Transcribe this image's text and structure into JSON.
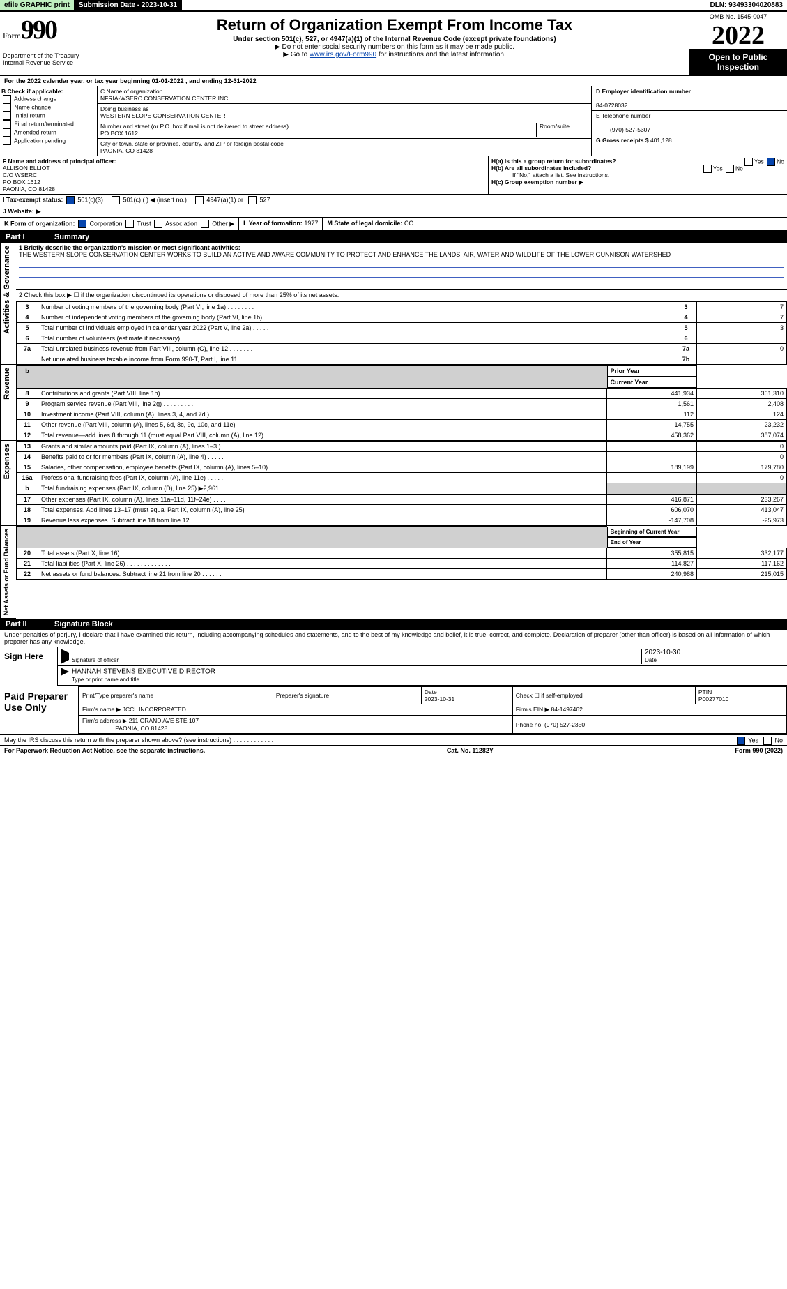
{
  "header": {
    "efile": "efile GRAPHIC print",
    "submission": "Submission Date - 2023-10-31",
    "dln": "DLN: 93493304020883"
  },
  "form": {
    "prefix": "Form",
    "number": "990",
    "title": "Return of Organization Exempt From Income Tax",
    "sub1": "Under section 501(c), 527, or 4947(a)(1) of the Internal Revenue Code (except private foundations)",
    "sub2": "Do not enter social security numbers on this form as it may be made public.",
    "sub3": "Go to www.irs.gov/Form990 for instructions and the latest information.",
    "irslink": "www.irs.gov/Form990",
    "dept": "Department of the Treasury Internal Revenue Service",
    "omb": "OMB No. 1545-0047",
    "year": "2022",
    "pub": "Open to Public Inspection"
  },
  "period": "For the 2022 calendar year, or tax year beginning 01-01-2022   , and ending 12-31-2022",
  "checkB": {
    "title": "B Check if applicable:",
    "items": [
      "Address change",
      "Name change",
      "Initial return",
      "Final return/terminated",
      "Amended return",
      "Application pending"
    ]
  },
  "blockC": {
    "nameLbl": "C Name of organization",
    "name": "NFRIA-WSERC CONSERVATION CENTER INC",
    "dbaLbl": "Doing business as",
    "dba": "WESTERN SLOPE CONSERVATION CENTER",
    "streetLbl": "Number and street (or P.O. box if mail is not delivered to street address)",
    "roomLbl": "Room/suite",
    "street": "PO BOX 1612",
    "cityLbl": "City or town, state or province, country, and ZIP or foreign postal code",
    "city": "PAONIA, CO  81428"
  },
  "blockD": {
    "lbl": "D Employer identification number",
    "val": "84-0728032"
  },
  "blockE": {
    "lbl": "E Telephone number",
    "val": "(970) 527-5307"
  },
  "blockG": {
    "lbl": "G Gross receipts $",
    "val": "401,128"
  },
  "blockF": {
    "lbl": "F  Name and address of principal officer:",
    "lines": [
      "ALLISON ELLIOT",
      "C/O WSERC",
      "PO BOX 1612",
      "PAONIA, CO  81428"
    ]
  },
  "blockH": {
    "a": "H(a)  Is this a group return for subordinates?",
    "aYes": "Yes",
    "aNo": "No",
    "b": "H(b)  Are all subordinates included?",
    "bYes": "Yes",
    "bNo": "No",
    "bNote": "If \"No,\" attach a list. See instructions.",
    "c": "H(c)  Group exemption number ▶"
  },
  "taxI": {
    "lbl": "I   Tax-exempt status:",
    "o1": "501(c)(3)",
    "o2": "501(c) (  ) ◀ (insert no.)",
    "o3": "4947(a)(1) or",
    "o4": "527"
  },
  "taxJ": {
    "lbl": "J   Website: ▶"
  },
  "taxK": {
    "lbl": "K Form of organization:",
    "o1": "Corporation",
    "o2": "Trust",
    "o3": "Association",
    "o4": "Other ▶"
  },
  "taxL": {
    "lbl": "L Year of formation:",
    "val": "1977"
  },
  "taxM": {
    "lbl": "M State of legal domicile:",
    "val": "CO"
  },
  "part1": {
    "bar": "Part I",
    "title": "Summary"
  },
  "sideLabels": {
    "ag": "Activities & Governance",
    "rev": "Revenue",
    "exp": "Expenses",
    "na": "Net Assets or Fund Balances"
  },
  "q1": {
    "lbl": "1  Briefly describe the organization's mission or most significant activities:",
    "text": "THE WESTERN SLOPE CONSERVATION CENTER WORKS TO BUILD AN ACTIVE AND AWARE COMMUNITY TO PROTECT AND ENHANCE THE LANDS, AIR, WATER AND WILDLIFE OF THE LOWER GUNNISON WATERSHED"
  },
  "q2": "2   Check this box ▶ ☐  if the organization discontinued its operations or disposed of more than 25% of its net assets.",
  "govRows": [
    {
      "n": "3",
      "t": "Number of voting members of the governing body (Part VI, line 1a)  .    .    .    .    .    .    .    .",
      "b": "3",
      "v": "7"
    },
    {
      "n": "4",
      "t": "Number of independent voting members of the governing body (Part VI, line 1b)   .    .    .    .",
      "b": "4",
      "v": "7"
    },
    {
      "n": "5",
      "t": "Total number of individuals employed in calendar year 2022 (Part V, line 2a)   .    .    .    .    .",
      "b": "5",
      "v": "3"
    },
    {
      "n": "6",
      "t": "Total number of volunteers (estimate if necessary)    .    .    .    .    .    .    .    .    .    .    .",
      "b": "6",
      "v": ""
    },
    {
      "n": "7a",
      "t": "Total unrelated business revenue from Part VIII, column (C), line 12   .    .    .    .    .    .    .",
      "b": "7a",
      "v": "0"
    },
    {
      "n": "",
      "t": "Net unrelated business taxable income from Form 990-T, Part I, line 11   .    .    .    .    .    .    .",
      "b": "7b",
      "v": ""
    }
  ],
  "hdrPrior": "Prior Year",
  "hdrCurr": "Current Year",
  "revRows": [
    {
      "n": "8",
      "t": "Contributions and grants (Part VIII, line 1h)   .    .    .    .    .    .    .    .    .",
      "p": "441,934",
      "c": "361,310"
    },
    {
      "n": "9",
      "t": "Program service revenue (Part VIII, line 2g)   .    .    .    .    .    .    .    .    .",
      "p": "1,561",
      "c": "2,408"
    },
    {
      "n": "10",
      "t": "Investment income (Part VIII, column (A), lines 3, 4, and 7d )   .    .    .    .",
      "p": "112",
      "c": "124"
    },
    {
      "n": "11",
      "t": "Other revenue (Part VIII, column (A), lines 5, 6d, 8c, 9c, 10c, and 11e)",
      "p": "14,755",
      "c": "23,232"
    },
    {
      "n": "12",
      "t": "Total revenue—add lines 8 through 11 (must equal Part VIII, column (A), line 12)",
      "p": "458,362",
      "c": "387,074"
    }
  ],
  "expRows": [
    {
      "n": "13",
      "t": "Grants and similar amounts paid (Part IX, column (A), lines 1–3 )   .    .    .",
      "p": "",
      "c": "0"
    },
    {
      "n": "14",
      "t": "Benefits paid to or for members (Part IX, column (A), line 4)   .    .    .    .    .",
      "p": "",
      "c": "0"
    },
    {
      "n": "15",
      "t": "Salaries, other compensation, employee benefits (Part IX, column (A), lines 5–10)",
      "p": "189,199",
      "c": "179,780"
    },
    {
      "n": "16a",
      "t": "Professional fundraising fees (Part IX, column (A), line 11e)   .    .    .    .    .",
      "p": "",
      "c": "0"
    },
    {
      "n": "b",
      "t": "Total fundraising expenses (Part IX, column (D), line 25) ▶2,961",
      "p": "grey",
      "c": "grey"
    },
    {
      "n": "17",
      "t": "Other expenses (Part IX, column (A), lines 11a–11d, 11f–24e)   .    .    .    .",
      "p": "416,871",
      "c": "233,267"
    },
    {
      "n": "18",
      "t": "Total expenses. Add lines 13–17 (must equal Part IX, column (A), line 25)",
      "p": "606,070",
      "c": "413,047"
    },
    {
      "n": "19",
      "t": "Revenue less expenses. Subtract line 18 from line 12  .    .    .    .    .    .    .",
      "p": "-147,708",
      "c": "-25,973"
    }
  ],
  "hdrBeg": "Beginning of Current Year",
  "hdrEnd": "End of Year",
  "naRows": [
    {
      "n": "20",
      "t": "Total assets (Part X, line 16)  .    .    .    .    .    .    .    .    .    .    .    .    .    .",
      "p": "355,815",
      "c": "332,177"
    },
    {
      "n": "21",
      "t": "Total liabilities (Part X, line 26)  .    .    .    .    .    .    .    .    .    .    .    .    .",
      "p": "114,827",
      "c": "117,162"
    },
    {
      "n": "22",
      "t": "Net assets or fund balances. Subtract line 21 from line 20   .    .    .    .    .    .",
      "p": "240,988",
      "c": "215,015"
    }
  ],
  "part2": {
    "bar": "Part II",
    "title": "Signature Block"
  },
  "perjury": "Under penalties of perjury, I declare that I have examined this return, including accompanying schedules and statements, and to the best of my knowledge and belief, it is true, correct, and complete. Declaration of preparer (other than officer) is based on all information of which preparer has any knowledge.",
  "sign": {
    "here": "Sign Here",
    "sigOf": "Signature of officer",
    "date": "2023-10-30",
    "dateLbl": "Date",
    "typed": "HANNAH STEVENS  EXECUTIVE DIRECTOR",
    "typedLbl": "Type or print name and title"
  },
  "paid": {
    "lbl": "Paid Preparer Use Only",
    "h1": "Print/Type preparer's name",
    "h2": "Preparer's signature",
    "h3": "Date",
    "h3v": "2023-10-31",
    "h4": "Check ☐ if self-employed",
    "h5": "PTIN",
    "h5v": "P00277010",
    "firmLbl": "Firm's name   ▶",
    "firm": "JCCL INCORPORATED",
    "einLbl": "Firm's EIN ▶",
    "ein": "84-1497462",
    "addrLbl": "Firm's address ▶",
    "addr1": "211 GRAND AVE STE 107",
    "addr2": "PAONIA, CO  81428",
    "phoneLbl": "Phone no.",
    "phone": "(970) 527-2350"
  },
  "discuss": "May the IRS discuss this return with the preparer shown above? (see instructions)   .    .    .    .    .    .    .    .    .    .    .    .",
  "discussYes": "Yes",
  "discussNo": "No",
  "footer": {
    "l": "For Paperwork Reduction Act Notice, see the separate instructions.",
    "m": "Cat. No. 11282Y",
    "r": "Form 990 (2022)"
  }
}
